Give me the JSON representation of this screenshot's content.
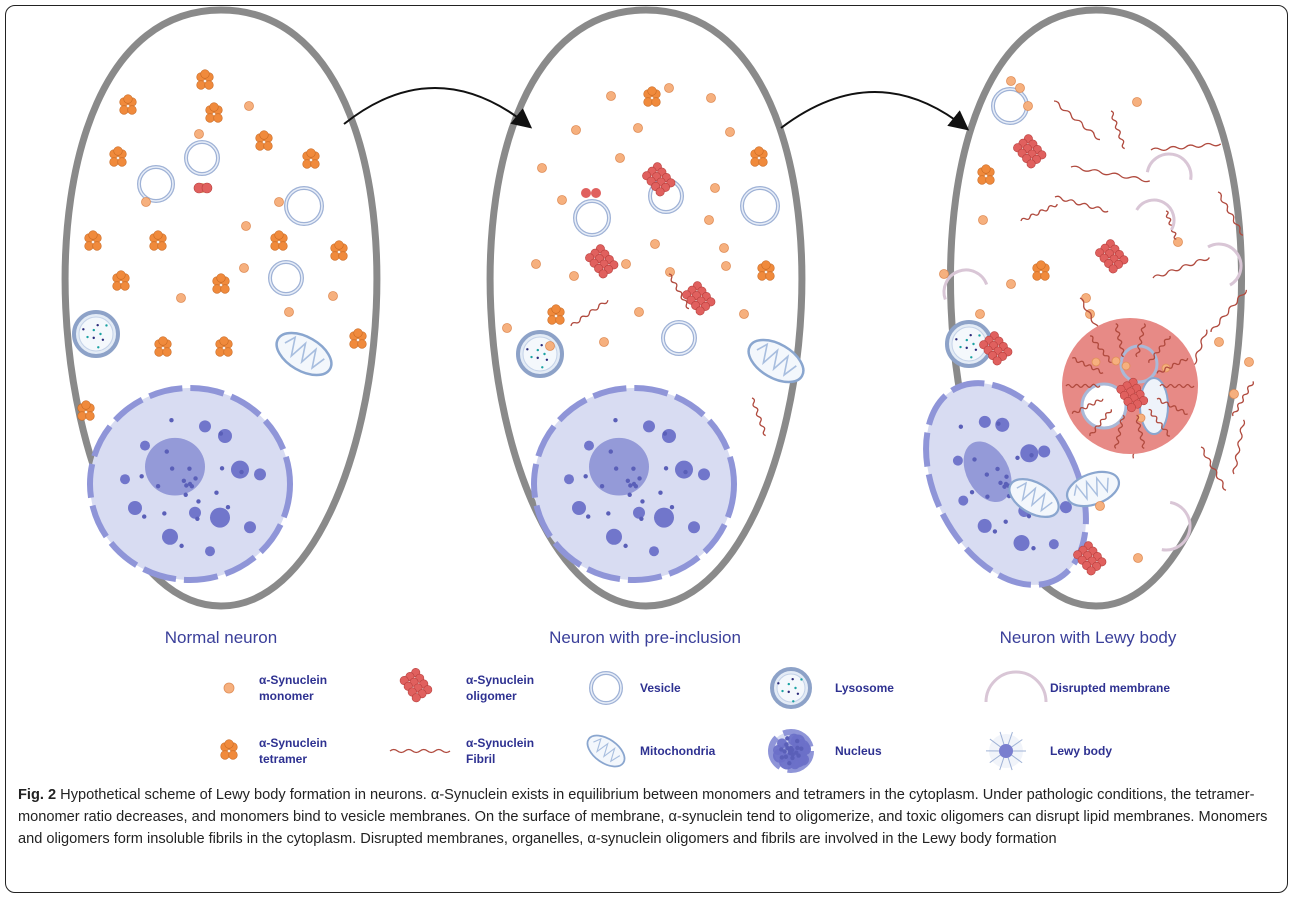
{
  "figure": {
    "cells": [
      {
        "label": "Normal neuron"
      },
      {
        "label": "Neuron with pre-inclusion"
      },
      {
        "label": "Neuron with Lewy body"
      }
    ],
    "legend": [
      {
        "icon": "monomer",
        "line1": "α-Synuclein",
        "line2": "monomer"
      },
      {
        "icon": "oligomer",
        "line1": "α-Synuclein",
        "line2": "oligomer"
      },
      {
        "icon": "vesicle",
        "line1": "Vesicle",
        "line2": ""
      },
      {
        "icon": "lysosome",
        "line1": "Lysosome",
        "line2": ""
      },
      {
        "icon": "disrupted-membrane",
        "line1": "Disrupted membrane",
        "line2": ""
      },
      {
        "icon": "tetramer",
        "line1": "α-Synuclein",
        "line2": "tetramer"
      },
      {
        "icon": "fibril",
        "line1": "α-Synuclein",
        "line2": "Fibril"
      },
      {
        "icon": "mitochondria",
        "line1": "Mitochondria",
        "line2": ""
      },
      {
        "icon": "nucleus",
        "line1": "Nucleus",
        "line2": ""
      },
      {
        "icon": "lewy-body",
        "line1": "Lewy body",
        "line2": ""
      }
    ],
    "colors": {
      "cell_outline": "#8a8a8a",
      "monomer": "#f6b07e",
      "tetramer": "#f08a3c",
      "oligomer": "#e0605e",
      "fibril": "#b04a3e",
      "nucleus_fill": "#d8dcf2",
      "nucleus_dark": "#6b70c8",
      "vesicle": "#9fb2d6",
      "lewy_body": "#e78a86",
      "label_text": "#3a3f9a"
    }
  },
  "caption": {
    "prefix": "Fig. 2",
    "text": " Hypothetical scheme of Lewy body formation in neurons. α-Synuclein exists in equilibrium between monomers and tetramers in the cytoplasm. Under pathologic conditions, the tetramer-monomer ratio decreases, and monomers bind to vesicle membranes. On the surface of membrane, α-synuclein tend to oligomerize, and toxic oligomers can disrupt lipid membranes. Monomers and oligomers form insoluble fibrils in the cytoplasm. Disrupted membranes, organelles, α-synuclein oligomers and fibrils are involved in the Lewy body formation"
  }
}
